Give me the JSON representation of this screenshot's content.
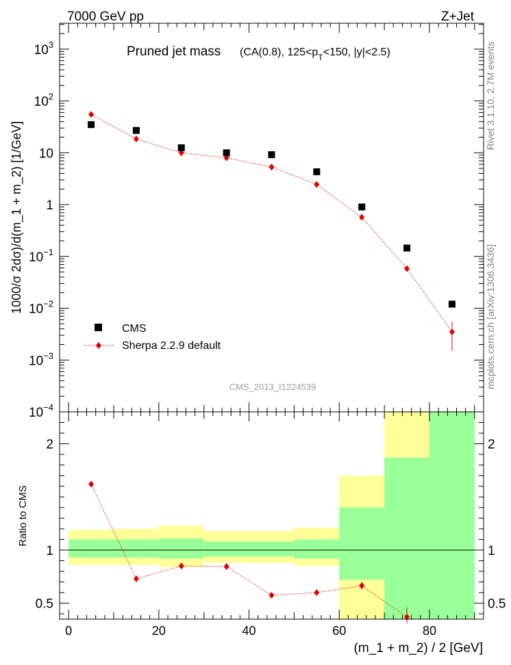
{
  "header": {
    "energy_label": "7000 GeV pp",
    "process_label": "Z+Jet",
    "plot_title": "Pruned jet mass",
    "plot_subtitle_pre": "(CA(0.8), 125<p",
    "plot_subtitle_sub": "T",
    "plot_subtitle_post": "<150, |y|<2.5)",
    "rivet_label": "Rivet 3.1.10,  2.7M events",
    "source_label": "mcplots.cern.ch [arXiv:1306.3436]",
    "analysis_label": "CMS_2013_I1224539"
  },
  "chart_data": [
    {
      "type": "scatter",
      "name": "main",
      "yscale": "log",
      "ylabel": "1000/σ 2dσ)/d(m_1 + m_2) [1/GeV]",
      "xlim": [
        -2,
        92
      ],
      "ylim_log10": [
        -4,
        3.5
      ],
      "y_ticks": [
        {
          "exp": 3,
          "text": "10",
          "sup": "3"
        },
        {
          "exp": 2,
          "text": "10",
          "sup": "2"
        },
        {
          "exp": 1,
          "text": "10",
          "sup": ""
        },
        {
          "exp": 0,
          "text": "1",
          "sup": ""
        },
        {
          "exp": -1,
          "text": "10",
          "sup": "−1"
        },
        {
          "exp": -2,
          "text": "10",
          "sup": "−2"
        },
        {
          "exp": -3,
          "text": "10",
          "sup": "−3"
        },
        {
          "exp": -4,
          "text": "10",
          "sup": "−4"
        }
      ],
      "legend": [
        "CMS",
        "Sherpa 2.2.9 default"
      ],
      "series": [
        {
          "name": "CMS",
          "x": [
            5,
            15,
            25,
            35,
            45,
            55,
            65,
            75,
            85
          ],
          "y": [
            35,
            27,
            12.5,
            10,
            9.2,
            4.3,
            0.9,
            0.145,
            0.012
          ]
        },
        {
          "name": "Sherpa 2.2.9 default",
          "x": [
            5,
            15,
            25,
            35,
            45,
            55,
            65,
            75,
            85
          ],
          "y": [
            55,
            18.5,
            10,
            8,
            5.3,
            2.45,
            0.57,
            0.058,
            0.0035
          ],
          "yerr_lo": [
            0,
            0,
            0,
            0,
            0,
            0,
            0,
            0.006,
            0.002
          ],
          "yerr_hi": [
            0,
            0,
            0,
            0,
            0,
            0,
            0,
            0.006,
            0.002
          ]
        }
      ]
    },
    {
      "type": "scatter",
      "name": "ratio",
      "ylabel": "Ratio to CMS",
      "xlabel": "(m_1 + m_2) / 2 [GeV]",
      "xlim": [
        -2,
        92
      ],
      "ylim": [
        0.35,
        2.3
      ],
      "x_ticks": [
        0,
        20,
        40,
        60,
        80
      ],
      "y_ticks": [
        0.5,
        1,
        2
      ],
      "bands": [
        {
          "x0": 0,
          "x1": 10,
          "yellow": [
            0.86,
            1.19
          ],
          "green": [
            0.93,
            1.1
          ]
        },
        {
          "x0": 10,
          "x1": 20,
          "yellow": [
            0.86,
            1.2
          ],
          "green": [
            0.93,
            1.1
          ]
        },
        {
          "x0": 20,
          "x1": 30,
          "yellow": [
            0.84,
            1.23
          ],
          "green": [
            0.92,
            1.11
          ]
        },
        {
          "x0": 30,
          "x1": 40,
          "yellow": [
            0.88,
            1.18
          ],
          "green": [
            0.94,
            1.08
          ]
        },
        {
          "x0": 40,
          "x1": 50,
          "yellow": [
            0.88,
            1.18
          ],
          "green": [
            0.94,
            1.08
          ]
        },
        {
          "x0": 50,
          "x1": 60,
          "yellow": [
            0.85,
            1.21
          ],
          "green": [
            0.92,
            1.1
          ]
        },
        {
          "x0": 60,
          "x1": 70,
          "yellow": [
            0.35,
            1.7
          ],
          "green": [
            0.72,
            1.4
          ]
        },
        {
          "x0": 70,
          "x1": 80,
          "yellow": [
            0.35,
            2.3
          ],
          "green": [
            0.35,
            1.87
          ]
        },
        {
          "x0": 80,
          "x1": 90,
          "yellow": [
            0.35,
            2.3
          ],
          "green": [
            0.35,
            2.3
          ]
        }
      ],
      "series": [
        {
          "name": "Sherpa 2.2.9 default / CMS",
          "x": [
            5,
            15,
            25,
            35,
            45,
            55,
            65,
            75
          ],
          "y": [
            1.62,
            0.73,
            0.85,
            0.845,
            0.575,
            0.6,
            0.665,
            0.37
          ],
          "yerr_lo": [
            0,
            0,
            0,
            0,
            0,
            0,
            0.035,
            0.06
          ],
          "yerr_hi": [
            0,
            0,
            0,
            0,
            0,
            0,
            0.035,
            0.09
          ]
        }
      ]
    }
  ]
}
